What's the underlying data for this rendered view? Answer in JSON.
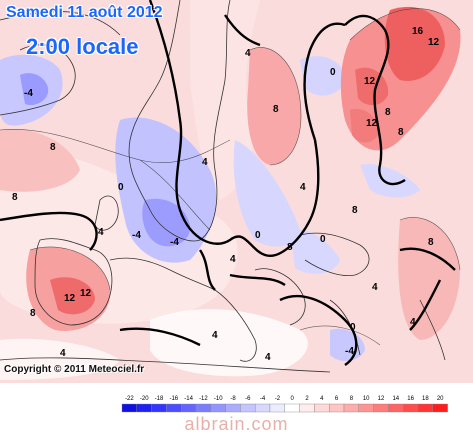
{
  "header": {
    "date": "Samedi 11 août 2012",
    "time": "2:00 locale"
  },
  "copyright": "Copyright © 2011 Meteociel.fr",
  "watermark": "albrain.com",
  "legend": {
    "ticks": [
      "-22",
      "-20",
      "-18",
      "-16",
      "-14",
      "-12",
      "-10",
      "-8",
      "-6",
      "-4",
      "-2",
      "0",
      "2",
      "4",
      "6",
      "8",
      "10",
      "12",
      "14",
      "16",
      "18",
      "20"
    ],
    "colors": [
      "#1010e0",
      "#2020f0",
      "#3434ff",
      "#4c4cff",
      "#6464ff",
      "#7c7cff",
      "#9494ff",
      "#acacff",
      "#c4c4ff",
      "#d8d8ff",
      "#ececff",
      "#ffffff",
      "#ffecec",
      "#ffd8d8",
      "#ffc4c4",
      "#ffacac",
      "#ff9494",
      "#ff7c7c",
      "#ff6464",
      "#ff4c4c",
      "#ff3434",
      "#ff1c1c"
    ]
  },
  "map_labels": [
    "16",
    "12",
    "12",
    "12",
    "12",
    "8",
    "8",
    "8",
    "8",
    "8",
    "8",
    "8",
    "8",
    "8",
    "4",
    "4",
    "4",
    "4",
    "4",
    "4",
    "4",
    "4",
    "4",
    "4",
    "0",
    "0",
    "0",
    "0",
    "0",
    "-4",
    "-4",
    "-4",
    "-4"
  ]
}
